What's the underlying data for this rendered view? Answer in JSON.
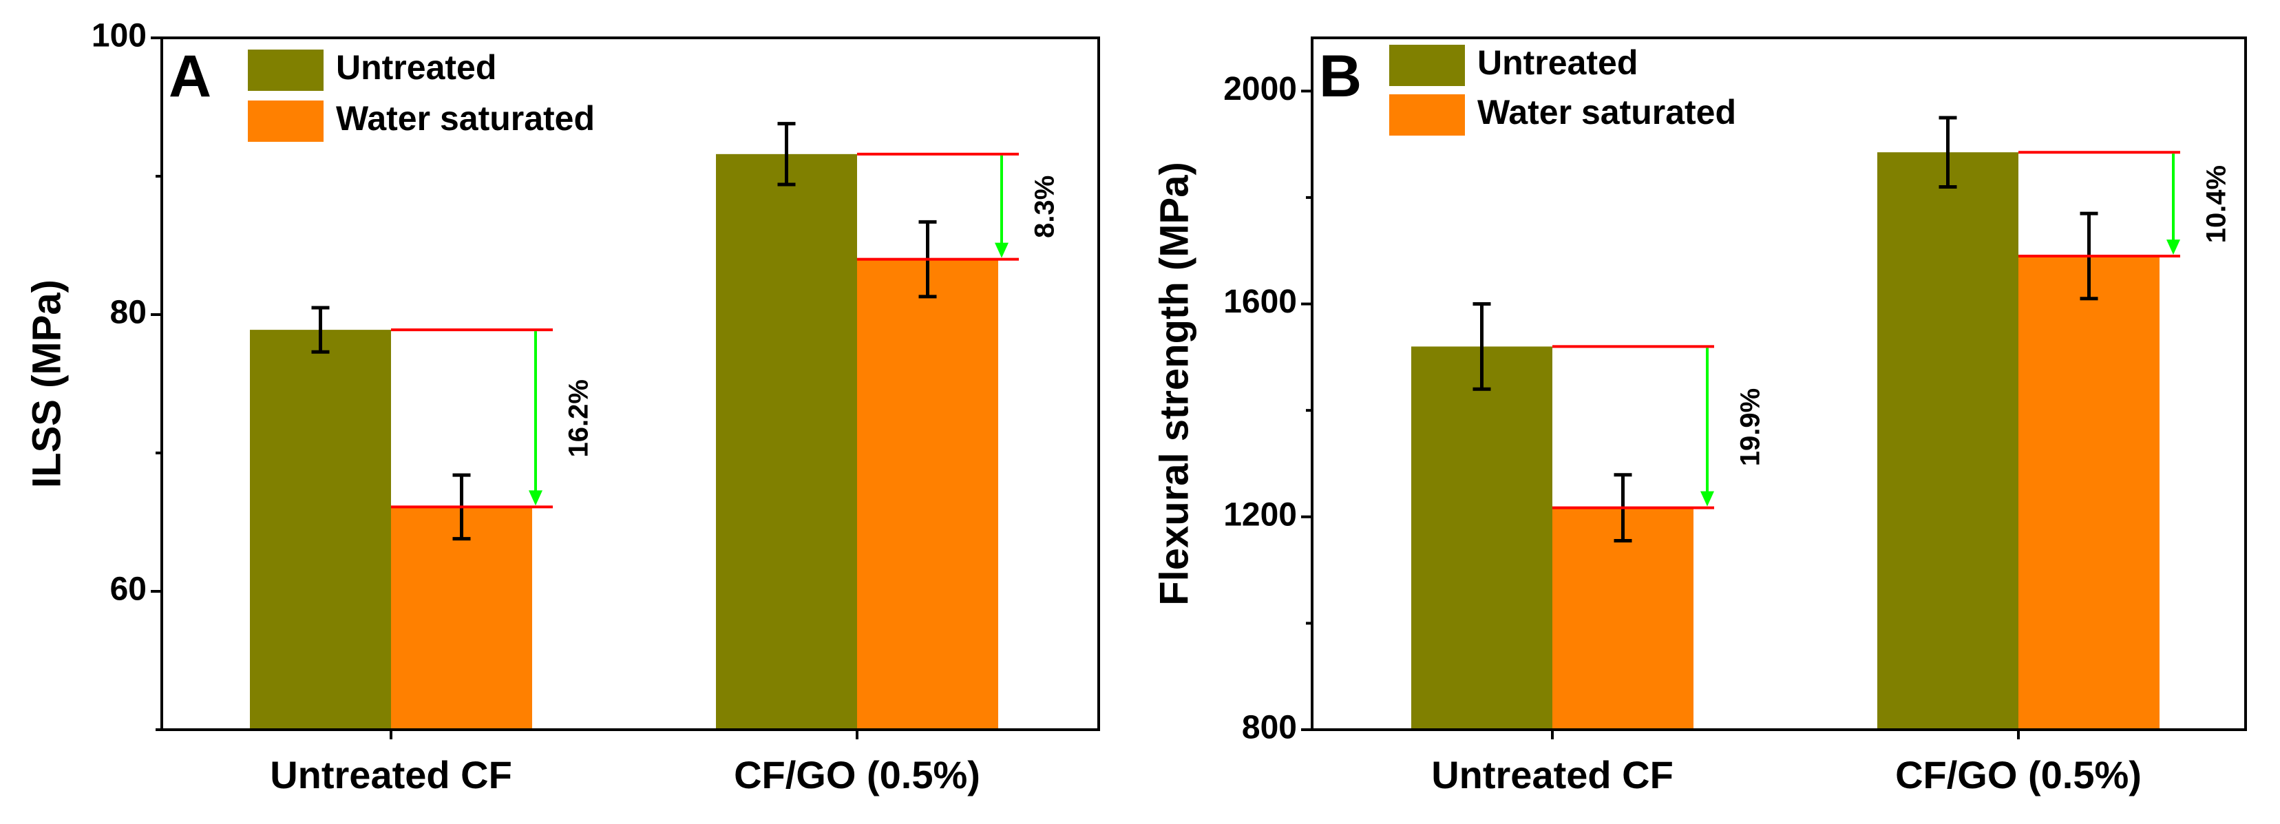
{
  "chart_data": [
    {
      "type": "bar",
      "panel_label": "A",
      "title": "",
      "xlabel": "",
      "ylabel": "ILSS (MPa)",
      "ylim": [
        50,
        100
      ],
      "yticks": [
        60,
        80,
        100
      ],
      "categories": [
        "Untreated CF",
        "CF/GO (0.5%)"
      ],
      "series": [
        {
          "name": "Untreated",
          "color": "#808000",
          "values": [
            78.9,
            91.6
          ],
          "errors": [
            1.6,
            2.2
          ]
        },
        {
          "name": "Water saturated",
          "color": "#ff8000",
          "values": [
            66.1,
            84.0
          ],
          "errors": [
            2.3,
            2.7
          ]
        }
      ],
      "annotations": [
        {
          "category_index": 0,
          "text": "16.2%"
        },
        {
          "category_index": 1,
          "text": "8.3%"
        }
      ],
      "legend": "top-left",
      "grid": false
    },
    {
      "type": "bar",
      "panel_label": "B",
      "title": "",
      "xlabel": "",
      "ylabel": "Flexural strength (MPa)",
      "ylim": [
        800,
        2100
      ],
      "yticks": [
        800,
        1200,
        1600,
        2000
      ],
      "categories": [
        "Untreated CF",
        "CF/GO (0.5%)"
      ],
      "series": [
        {
          "name": "Untreated",
          "color": "#808000",
          "values": [
            1520,
            1885
          ],
          "errors": [
            80,
            65
          ]
        },
        {
          "name": "Water saturated",
          "color": "#ff8000",
          "values": [
            1217,
            1690
          ],
          "errors": [
            62,
            80
          ]
        }
      ],
      "annotations": [
        {
          "category_index": 0,
          "text": "19.9%"
        },
        {
          "category_index": 1,
          "text": "10.4%"
        }
      ],
      "legend": "top-left",
      "grid": false
    }
  ],
  "colors": {
    "reference_line": "#ff0000",
    "arrow": "#00ff00",
    "error_bar": "#000000"
  }
}
